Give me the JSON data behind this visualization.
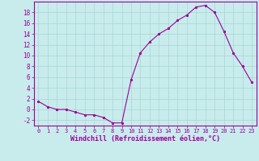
{
  "x": [
    0,
    1,
    2,
    3,
    4,
    5,
    6,
    7,
    8,
    9,
    10,
    11,
    12,
    13,
    14,
    15,
    16,
    17,
    18,
    19,
    20,
    21,
    22,
    23
  ],
  "y": [
    1.5,
    0.5,
    0.0,
    0.0,
    -0.5,
    -1.0,
    -1.0,
    -1.5,
    -2.5,
    -2.5,
    5.5,
    10.5,
    12.5,
    14.0,
    15.0,
    16.5,
    17.5,
    19.0,
    19.3,
    18.0,
    14.5,
    10.5,
    8.0,
    5.0
  ],
  "line_color": "#990099",
  "marker": ".",
  "marker_size": 3,
  "bg_color": "#c8ecec",
  "grid_color": "#aad4d4",
  "xlabel": "Windchill (Refroidissement éolien,°C)",
  "xlabel_color": "#990099",
  "tick_color": "#990099",
  "ylim": [
    -3,
    20
  ],
  "xlim": [
    -0.5,
    23.5
  ],
  "yticks": [
    -2,
    0,
    2,
    4,
    6,
    8,
    10,
    12,
    14,
    16,
    18
  ],
  "xticks": [
    0,
    1,
    2,
    3,
    4,
    5,
    6,
    7,
    8,
    9,
    10,
    11,
    12,
    13,
    14,
    15,
    16,
    17,
    18,
    19,
    20,
    21,
    22,
    23
  ]
}
